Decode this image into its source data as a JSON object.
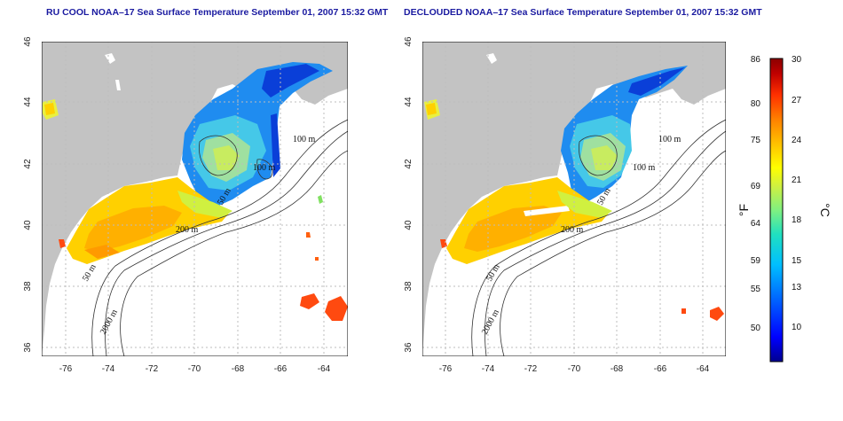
{
  "panels": [
    {
      "title": "RU COOL NOAA–17 Sea Surface Temperature September 01, 2007 15:32 GMT",
      "x_ticks": [
        "-76",
        "-74",
        "-72",
        "-70",
        "-68",
        "-66",
        "-64"
      ],
      "y_ticks": [
        "36",
        "38",
        "40",
        "42",
        "44",
        "46"
      ],
      "contour_labels": [
        "100 m",
        "100 m",
        "50 m",
        "200 m",
        "50 m",
        "2000 m"
      ]
    },
    {
      "title": "DECLOUDED NOAA–17 Sea Surface Temperature September 01, 2007 15:32 GMT",
      "x_ticks": [
        "-76",
        "-74",
        "-72",
        "-70",
        "-68",
        "-66",
        "-64"
      ],
      "y_ticks": [
        "36",
        "38",
        "40",
        "42",
        "44",
        "46"
      ],
      "contour_labels": [
        "100 m",
        "100 m",
        "50 m",
        "200 m",
        "50 m",
        "2000 m"
      ]
    }
  ],
  "colorbar": {
    "fahrenheit": [
      "86",
      "80",
      "75",
      "69",
      "64",
      "59",
      "55",
      "50"
    ],
    "celsius": [
      "30",
      "27",
      "24",
      "21",
      "18",
      "15",
      "13",
      "10"
    ],
    "unit_f": "°F",
    "unit_c": "°C",
    "colors": [
      "#00008f",
      "#0000ff",
      "#0060ff",
      "#00bfff",
      "#20e0c0",
      "#80f080",
      "#d0f040",
      "#ffff00",
      "#ffc000",
      "#ff8000",
      "#ff3000",
      "#c00000",
      "#8b0000"
    ]
  },
  "colors": {
    "land": "#c3c3c3",
    "ocean": "#ffffff",
    "title": "#1a1aa0"
  }
}
